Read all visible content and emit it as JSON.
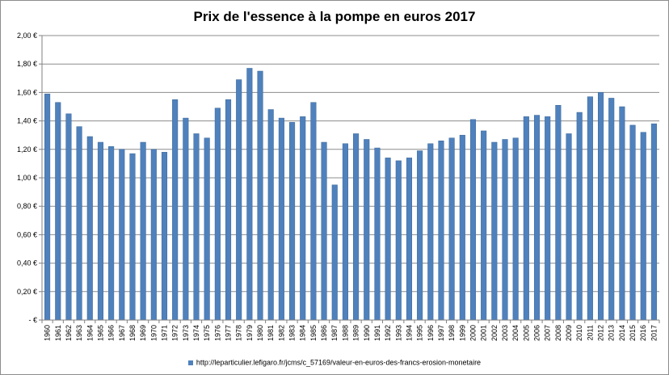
{
  "colors": {
    "bar": "#4F81BD",
    "bar_stroke": "#3A6796",
    "gridline": "#8c8c8c",
    "axis": "#808080"
  },
  "chart_data": {
    "type": "bar",
    "title": "Prix de l'essence à la pompe en euros 2017",
    "categories": [
      "1960",
      "1961",
      "1962",
      "1963",
      "1964",
      "1965",
      "1966",
      "1967",
      "1968",
      "1969",
      "1970",
      "1971",
      "1972",
      "1973",
      "1974",
      "1975",
      "1976",
      "1977",
      "1978",
      "1979",
      "1980",
      "1981",
      "1982",
      "1983",
      "1984",
      "1985",
      "1986",
      "1987",
      "1988",
      "1989",
      "1990",
      "1991",
      "1992",
      "1993",
      "1994",
      "1995",
      "1996",
      "1997",
      "1998",
      "1999",
      "2000",
      "2001",
      "2002",
      "2003",
      "2004",
      "2005",
      "2006",
      "2007",
      "2008",
      "2009",
      "2010",
      "2011",
      "2012",
      "2013",
      "2014",
      "2015",
      "2016",
      "2017"
    ],
    "series": [
      {
        "name": "http://leparticulier.lefigaro.fr/jcms/c_57169/valeur-en-euros-des-francs-erosion-monetaire",
        "values": [
          1.59,
          1.53,
          1.45,
          1.36,
          1.29,
          1.25,
          1.22,
          1.2,
          1.17,
          1.25,
          1.2,
          1.18,
          1.55,
          1.42,
          1.31,
          1.28,
          1.49,
          1.55,
          1.69,
          1.77,
          1.75,
          1.48,
          1.42,
          1.39,
          1.43,
          1.53,
          1.25,
          0.95,
          1.24,
          1.31,
          1.27,
          1.21,
          1.14,
          1.12,
          1.14,
          1.19,
          1.24,
          1.26,
          1.28,
          1.3,
          1.41,
          1.33,
          1.25,
          1.27,
          1.28,
          1.43,
          1.44,
          1.43,
          1.51,
          1.31,
          1.46,
          1.57,
          1.6,
          1.56,
          1.5,
          1.37,
          1.32,
          1.38
        ]
      }
    ],
    "y_tick_labels": [
      "-   €",
      "0,20 €",
      "0,40 €",
      "0,60 €",
      "0,80 €",
      "1,00 €",
      "1,20 €",
      "1,40 €",
      "1,60 €",
      "1,80 €",
      "2,00 €"
    ],
    "ylim": [
      0,
      2.0
    ],
    "y_step": 0.2,
    "grid": true,
    "legend_position": "bottom",
    "xlabel": "",
    "ylabel": ""
  }
}
